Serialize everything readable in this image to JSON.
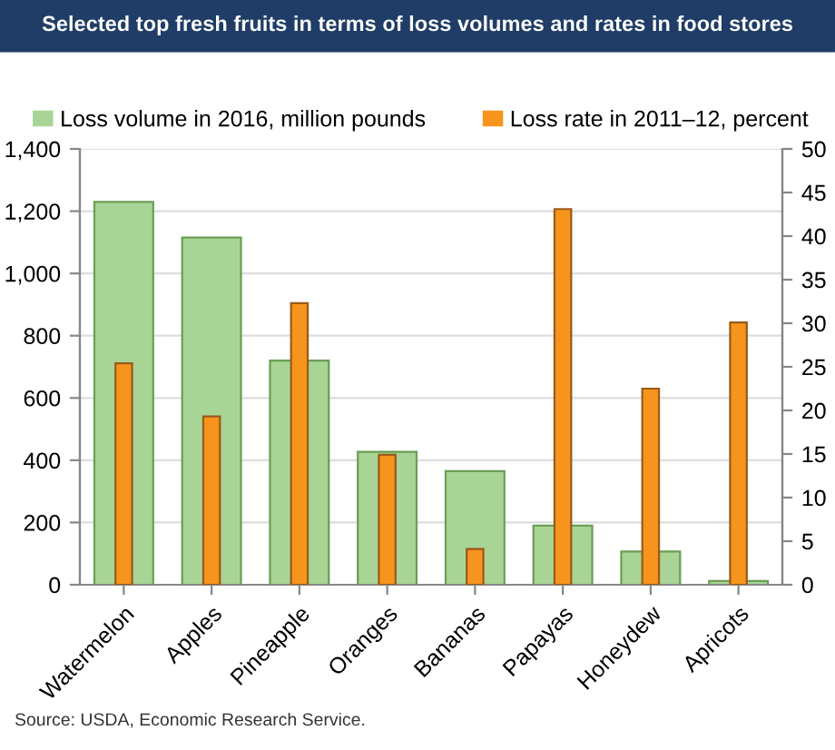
{
  "chart_data": {
    "type": "bar",
    "title": "Selected top fresh fruits in terms of loss volumes and rates in food stores",
    "categories": [
      "Watermelon",
      "Apples",
      "Pineapple",
      "Oranges",
      "Bananas",
      "Papayas",
      "Honeydew",
      "Apricots"
    ],
    "series": [
      {
        "name": "Loss volume in 2016, million pounds",
        "color": "#a8d596",
        "values": [
          1230,
          1115,
          720,
          427,
          365,
          190,
          107,
          12
        ]
      },
      {
        "name": "Loss rate in 2011–12, percent",
        "color": "#f7941d",
        "axis": "y2",
        "values": [
          25.4,
          19.3,
          32.3,
          14.9,
          4.1,
          43.1,
          22.5,
          30.1
        ]
      }
    ],
    "ylim": [
      0,
      1400
    ],
    "yticks": [
      0,
      {
        "value": 200,
        "label": "200"
      },
      {
        "value": 400,
        "label": "400"
      },
      {
        "value": 600,
        "label": "600"
      },
      {
        "value": 800,
        "label": "800"
      },
      {
        "value": 1000,
        "label": "1,000"
      },
      {
        "value": 1200,
        "label": "1,200"
      },
      {
        "value": 1400,
        "label": "1,400"
      }
    ],
    "y2lim": [
      0,
      50
    ],
    "y2ticks": [
      0,
      5,
      10,
      15,
      20,
      25,
      30,
      35,
      40,
      45,
      50
    ],
    "grid": "y",
    "legend": "top",
    "annotations": [
      "Source: USDA, Economic Research Service."
    ]
  }
}
